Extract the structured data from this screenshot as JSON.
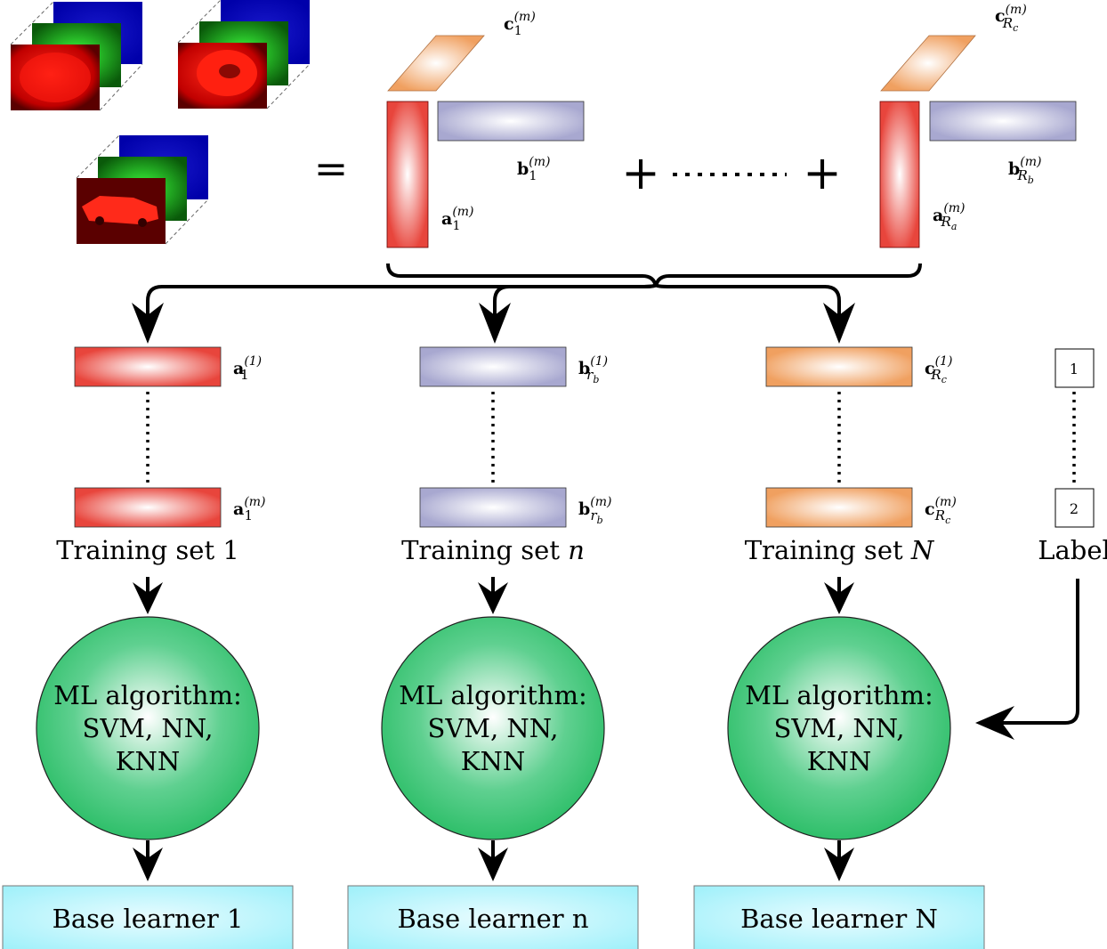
{
  "tensors": [
    "tensor-1",
    "tensor-2",
    "tensor-3"
  ],
  "equation": {
    "equals": "=",
    "plus": "+",
    "term_first": {
      "c": {
        "base": "c",
        "sub": "1",
        "sup": "(m)"
      },
      "b": {
        "base": "b",
        "sub": "1",
        "sup": "(m)"
      },
      "a": {
        "base": "a",
        "sub": "1",
        "sup": "(m)"
      }
    },
    "term_last": {
      "c": {
        "base": "c",
        "sub": "R",
        "subsub": "c",
        "sup": "(m)"
      },
      "b": {
        "base": "b",
        "sub": "R",
        "subsub": "b",
        "sup": "(m)"
      },
      "a": {
        "base": "a",
        "sub": "R",
        "subsub": "a",
        "sup": "(m)"
      }
    }
  },
  "columns": [
    {
      "top_vec": {
        "base": "a",
        "sub": "1",
        "subsub": "",
        "sup": "(1)"
      },
      "bottom_vec": {
        "base": "a",
        "sub": "1",
        "subsub": "",
        "sup": "(m)"
      },
      "color": "#e8453c",
      "training_label": "Training set 1",
      "training_prefix": "Training set ",
      "training_suffix": "1",
      "training_suffix_italic": false,
      "ml_lines": [
        "ML algorithm:",
        "SVM, NN,",
        "KNN"
      ],
      "base_learner": "Base learner 1"
    },
    {
      "top_vec": {
        "base": "b",
        "sub": "r",
        "subsub": "b",
        "sup": "(1)"
      },
      "bottom_vec": {
        "base": "b",
        "sub": "r",
        "subsub": "b",
        "sup": "(m)"
      },
      "color": "#a8a8d0",
      "training_label": "Training set n",
      "training_prefix": "Training set ",
      "training_suffix": "n",
      "training_suffix_italic": true,
      "ml_lines": [
        "ML algorithm:",
        "SVM, NN,",
        "KNN"
      ],
      "base_learner": "Base learner n"
    },
    {
      "top_vec": {
        "base": "c",
        "sub": "R",
        "subsub": "c",
        "sup": "(1)"
      },
      "bottom_vec": {
        "base": "c",
        "sub": "R",
        "subsub": "c",
        "sup": "(m)"
      },
      "color": "#f0a060",
      "training_label": "Training set N",
      "training_prefix": "Training set ",
      "training_suffix": "N",
      "training_suffix_italic": true,
      "ml_lines": [
        "ML algorithm:",
        "SVM, NN,",
        "KNN"
      ],
      "base_learner": "Base learner N"
    }
  ],
  "labels": {
    "top": "1",
    "bottom": "2",
    "title": "Label"
  },
  "colors": {
    "red": "#e8453c",
    "lavender": "#a8a8d0",
    "orange": "#f0a060",
    "green": "#2fbf6a",
    "cyan": "#9ef0fa"
  }
}
